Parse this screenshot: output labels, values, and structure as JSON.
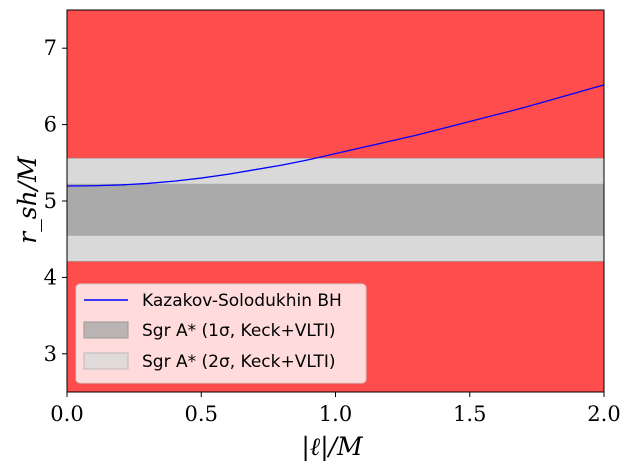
{
  "chart_data": {
    "type": "line",
    "title": "",
    "xlabel": "|ℓ|/M",
    "ylabel": "r_sh/M",
    "xlim": [
      0.0,
      2.0
    ],
    "ylim": [
      2.5,
      7.5
    ],
    "xticks": [
      "0.0",
      "0.5",
      "1.0",
      "1.5",
      "2.0"
    ],
    "yticks": [
      "3",
      "4",
      "5",
      "6",
      "7"
    ],
    "grid": false,
    "legend_position": "lower-left",
    "excluded_region_color": "#ff4c4c",
    "excluded_regions": [
      [
        2.5,
        4.21
      ],
      [
        5.56,
        7.5
      ]
    ],
    "bands": [
      {
        "name": "Sgr A* (2σ, Keck+VLTI)",
        "range": [
          4.21,
          5.56
        ],
        "color": "#d9d9d9"
      },
      {
        "name": "Sgr A* (1σ, Keck+VLTI)",
        "range": [
          4.55,
          5.22
        ],
        "color": "#aaaaaa"
      }
    ],
    "series": [
      {
        "name": "Kazakov-Solodukhin BH",
        "color": "#0000ff",
        "x": [
          0.0,
          0.1,
          0.2,
          0.3,
          0.4,
          0.5,
          0.6,
          0.7,
          0.8,
          0.9,
          1.0,
          1.1,
          1.2,
          1.3,
          1.4,
          1.5,
          1.6,
          1.7,
          1.8,
          1.9,
          2.0
        ],
        "values": [
          5.196,
          5.2,
          5.21,
          5.23,
          5.26,
          5.3,
          5.35,
          5.41,
          5.47,
          5.54,
          5.62,
          5.7,
          5.78,
          5.86,
          5.95,
          6.04,
          6.13,
          6.22,
          6.32,
          6.42,
          6.52
        ]
      }
    ]
  },
  "legend": {
    "line_label": "Kazakov-Solodukhin BH",
    "band1_label": "Sgr A* (1σ, Keck+VLTI)",
    "band2_label": "Sgr A* (2σ, Keck+VLTI)"
  }
}
